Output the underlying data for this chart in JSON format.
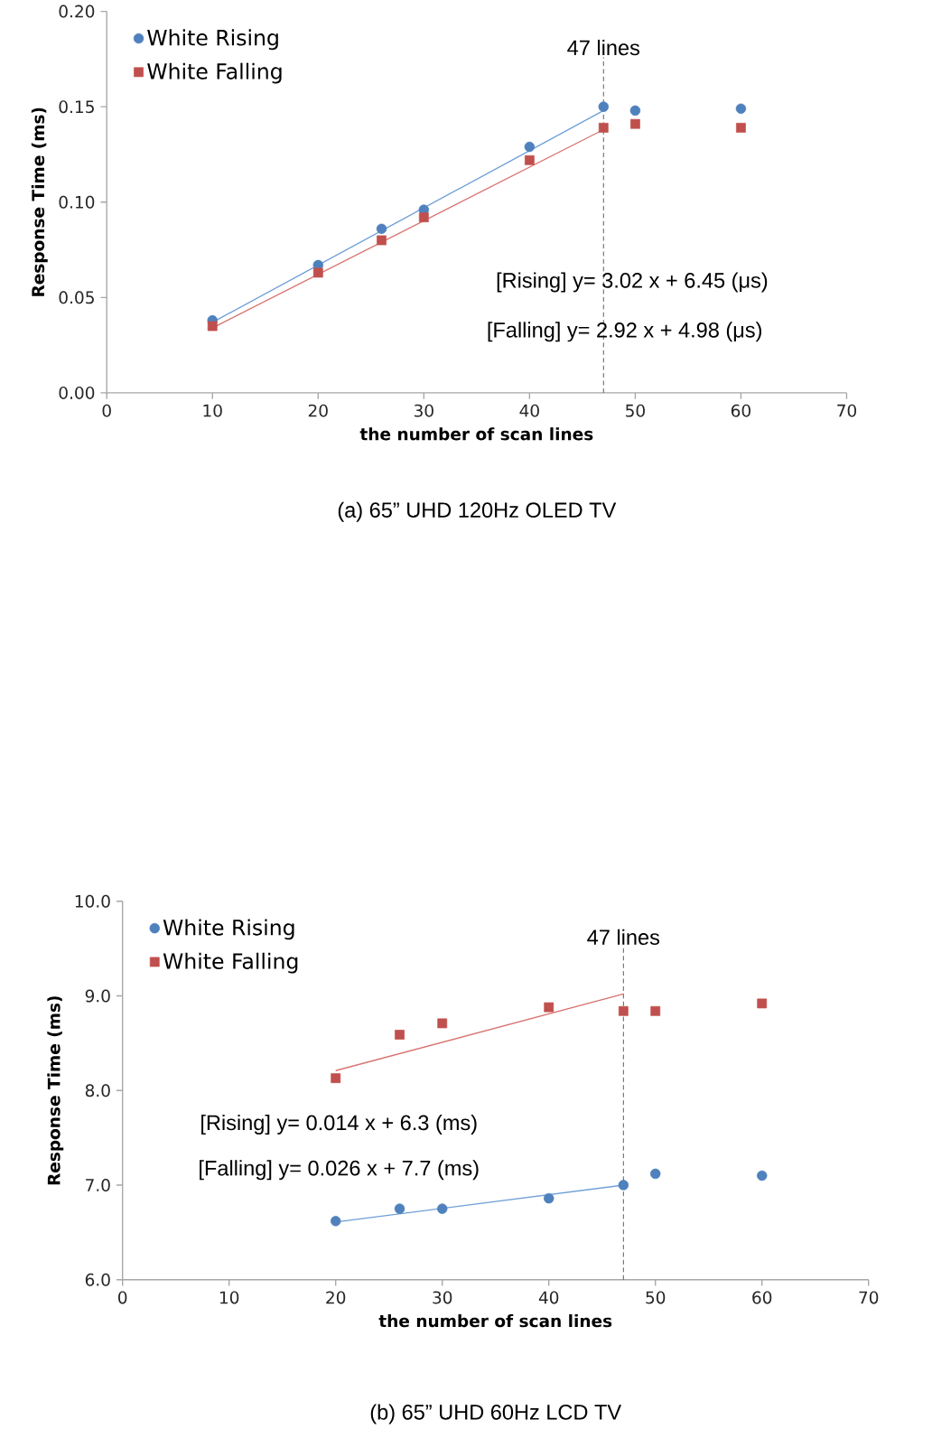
{
  "chart_data": [
    {
      "type": "scatter",
      "title": "(a)   65” UHD 120Hz OLED TV",
      "xlabel": "the number of scan lines",
      "ylabel": "Response Time (ms)",
      "xlim": [
        0,
        70
      ],
      "xticks": [
        0,
        10,
        20,
        30,
        40,
        50,
        60,
        70
      ],
      "ylim": [
        0,
        0.2
      ],
      "yticks": [
        {
          "value": 0,
          "label": "0.00"
        },
        {
          "value": 0.05,
          "label": "0.05"
        },
        {
          "value": 0.1,
          "label": "0.10"
        },
        {
          "value": 0.15,
          "label": "0.15"
        },
        {
          "value": 0.2,
          "label": "0.20"
        }
      ],
      "legend": "top left",
      "series": [
        {
          "name": "White Rising",
          "color": "#4f81bd",
          "marker": "circle",
          "x": [
            10,
            20,
            26,
            30,
            40,
            47,
            50,
            60
          ],
          "values": [
            0.038,
            0.067,
            0.086,
            0.096,
            0.129,
            0.15,
            0.148,
            0.149
          ]
        },
        {
          "name": "White Falling",
          "color": "#c0504d",
          "marker": "square",
          "x": [
            10,
            20,
            26,
            30,
            40,
            47,
            50,
            60
          ],
          "values": [
            0.035,
            0.063,
            0.08,
            0.092,
            0.122,
            0.139,
            0.141,
            0.139
          ]
        },
        {
          "type": "line",
          "color": "#6f9fd8",
          "x": [
            10,
            47
          ],
          "values": [
            0.037,
            0.148
          ]
        },
        {
          "type": "line",
          "color": "#d87471",
          "x": [
            10,
            47
          ],
          "values": [
            0.034,
            0.138
          ]
        }
      ],
      "ref_lines": [
        {
          "axis": "x",
          "value": 47,
          "label": "47 lines",
          "color": "#404040",
          "line_style": "dashed"
        }
      ],
      "annotations": [
        "[Rising] y= 3.02 x + 6.45 (μs)",
        "[Falling] y= 2.92 x + 4.98 (μs)"
      ]
    },
    {
      "type": "scatter",
      "title": "(b)   65” UHD 60Hz LCD TV",
      "xlabel": "the number of scan lines",
      "ylabel": "Response Time (ms)",
      "xlim": [
        0,
        70
      ],
      "xticks": [
        0,
        10,
        20,
        30,
        40,
        50,
        60,
        70
      ],
      "ylim": [
        6,
        10
      ],
      "yticks": [
        {
          "value": 6,
          "label": "6.0"
        },
        {
          "value": 7,
          "label": "7.0"
        },
        {
          "value": 8,
          "label": "8.0"
        },
        {
          "value": 9,
          "label": "9.0"
        },
        {
          "value": 10,
          "label": "10.0"
        }
      ],
      "legend": "top left",
      "series": [
        {
          "name": "White Rising",
          "color": "#4f81bd",
          "marker": "circle",
          "x": [
            20,
            26,
            30,
            40,
            47,
            50,
            60
          ],
          "values": [
            6.62,
            6.75,
            6.75,
            6.86,
            7.0,
            7.12,
            7.1
          ]
        },
        {
          "name": "White Falling",
          "color": "#c0504d",
          "marker": "square",
          "x": [
            20,
            26,
            30,
            40,
            47,
            50,
            60
          ],
          "values": [
            8.13,
            8.59,
            8.71,
            8.88,
            8.84,
            8.84,
            8.92
          ]
        },
        {
          "type": "line",
          "color": "#6f9fd8",
          "x": [
            20,
            47
          ],
          "values": [
            6.61,
            7.0
          ]
        },
        {
          "type": "line",
          "color": "#d87471",
          "x": [
            20,
            47
          ],
          "values": [
            8.21,
            9.02
          ]
        }
      ],
      "ref_lines": [
        {
          "axis": "x",
          "value": 47,
          "label": "47 lines",
          "color": "#404040",
          "line_style": "dashed"
        }
      ],
      "annotations": [
        "[Rising] y= 0.014 x + 6.3 (ms)",
        "[Falling] y= 0.026 x + 7.7 (ms)"
      ]
    }
  ]
}
